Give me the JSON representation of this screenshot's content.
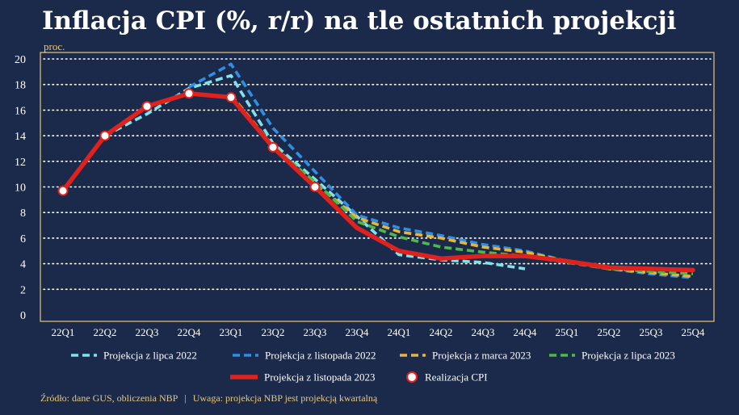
{
  "chart_data": {
    "type": "line",
    "title": "Inflacja CPI (%, r/r) na tle ostatnich projekcji",
    "ylabel": "proc.",
    "ylim": [
      0,
      20
    ],
    "yticks": [
      0,
      2,
      4,
      6,
      8,
      10,
      12,
      14,
      16,
      18,
      20
    ],
    "categories": [
      "22Q1",
      "22Q2",
      "22Q3",
      "22Q4",
      "23Q1",
      "23Q2",
      "23Q3",
      "23Q4",
      "24Q1",
      "24Q2",
      "24Q3",
      "24Q4",
      "25Q1",
      "25Q2",
      "25Q3",
      "25Q4"
    ],
    "grid": "horizontal-dotted",
    "legend_position": "bottom",
    "series": [
      {
        "name": "Projekcja z lipca 2022",
        "style": "dashed",
        "color": "#7fe3ec",
        "values": [
          null,
          14.0,
          15.7,
          17.7,
          18.7,
          13.4,
          10.6,
          7.7,
          4.7,
          4.3,
          4.1,
          3.6,
          null,
          null,
          null,
          null
        ]
      },
      {
        "name": "Projekcja z listopada 2022",
        "style": "dashed",
        "color": "#2f8fe3",
        "values": [
          null,
          null,
          null,
          17.8,
          19.6,
          14.6,
          11.2,
          7.8,
          6.8,
          6.2,
          5.5,
          5.0,
          4.2,
          3.6,
          3.2,
          2.9
        ]
      },
      {
        "name": "Projekcja z marca 2023",
        "style": "dashed",
        "color": "#e8b43a",
        "values": [
          null,
          null,
          null,
          null,
          17.2,
          13.2,
          10.3,
          7.6,
          6.5,
          6.0,
          5.3,
          4.9,
          4.2,
          3.6,
          3.3,
          3.0
        ]
      },
      {
        "name": "Projekcja z lipca 2023",
        "style": "dashed",
        "color": "#4fb84a",
        "values": [
          null,
          null,
          null,
          null,
          null,
          13.1,
          10.4,
          7.3,
          6.1,
          5.3,
          4.9,
          4.6,
          4.1,
          3.6,
          3.4,
          3.2
        ]
      },
      {
        "name": "Projekcja z listopada 2023",
        "style": "solid",
        "color": "#e0221f",
        "values": [
          9.7,
          14.0,
          16.3,
          17.3,
          17.0,
          13.1,
          10.0,
          6.8,
          5.0,
          4.4,
          4.6,
          4.6,
          4.2,
          3.7,
          3.6,
          3.5
        ]
      },
      {
        "name": "Realizacja CPI",
        "style": "markers",
        "color": "#ffffff",
        "values": [
          9.7,
          14.0,
          16.3,
          17.3,
          17.0,
          13.1,
          10.0,
          null,
          null,
          null,
          null,
          null,
          null,
          null,
          null,
          null
        ]
      }
    ]
  },
  "footer": {
    "source": "Źródło: dane GUS, obliczenia NBP",
    "separator": "|",
    "note": "Uwaga: projekcja NBP jest projekcją kwartalną"
  }
}
